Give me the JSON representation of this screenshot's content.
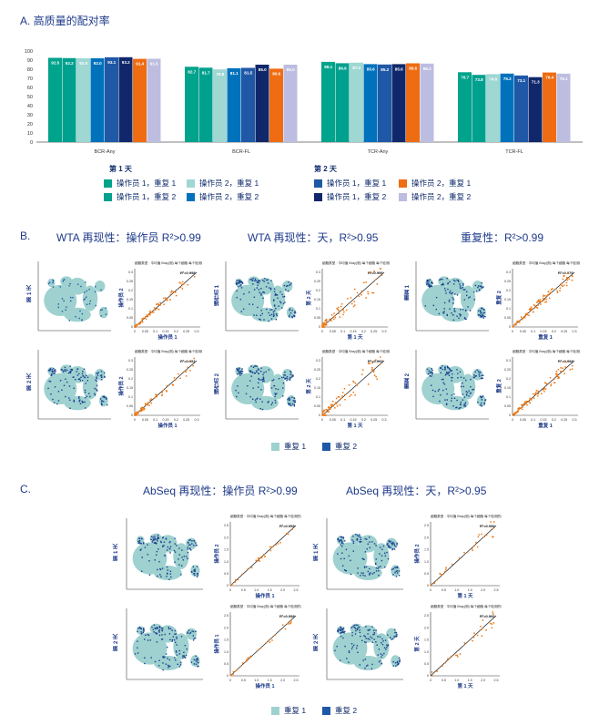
{
  "colors": {
    "op1_rep1": "#00a38b",
    "op2_rep1": "#9fd7d3",
    "op1_rep2": "#00a08e",
    "op2_rep2": "#0072bc",
    "day2_op1_rep1": "#1f58a6",
    "day2_op2_rep1": "#ef6c12",
    "day2_op1_rep2": "#10286b",
    "day2_op2_rep2": "#bcbde0",
    "tsne_fill": "#9ed1cf",
    "dot_orange": "#f07d1a"
  },
  "panel_a": {
    "title": "A. 高质量的配对率",
    "legend": {
      "day1_title": "第 1 天",
      "day2_title": "第 2 天",
      "day1_items": [
        "操作员 1，重复 1",
        "操作员 2，重复 1",
        "操作员 1，重复 2",
        "操作员 2，重复 2"
      ],
      "day2_items": [
        "操作员 1，重复 1",
        "操作员 2，重复 1",
        "操作员 1，重复 2",
        "操作员 2，重复 2"
      ]
    }
  },
  "chart_data": [
    {
      "type": "bar",
      "title": "A. 高质量的配对率",
      "categories": [
        "BCR-Any",
        "BCR-FL",
        "TCR-Any",
        "TCR-FL"
      ],
      "ylim": [
        0,
        100
      ],
      "yticks": [
        0,
        10,
        20,
        30,
        40,
        50,
        60,
        70,
        80,
        90,
        100
      ],
      "series": [
        {
          "name": "第 1 天 操作员 1，重复 1",
          "values": [
            92.5,
            82.7,
            88.1,
            76.7
          ]
        },
        {
          "name": "第 1 天 操作员 1，重复 2",
          "values": [
            92.2,
            81.7,
            86.6,
            73.8
          ]
        },
        {
          "name": "第 1 天 操作员 2，重复 1",
          "values": [
            92.0,
            79.8,
            87.2,
            74.6
          ]
        },
        {
          "name": "第 1 天 操作员 2，重复 2",
          "values": [
            92.0,
            81.1,
            85.6,
            75.2
          ]
        },
        {
          "name": "第 2 天 操作员 1，重复 1",
          "values": [
            93.1,
            81.5,
            85.2,
            73.1
          ]
        },
        {
          "name": "第 2 天 操作员 1，重复 2",
          "values": [
            93.2,
            85.0,
            85.6,
            71.3
          ]
        },
        {
          "name": "第 2 天 操作员 2，重复 1",
          "values": [
            91.4,
            80.6,
            86.5,
            76.4
          ]
        },
        {
          "name": "第 2 天 操作员 2，重复 2",
          "values": [
            91.5,
            85.0,
            86.2,
            75.1
          ]
        }
      ],
      "value_labels": [
        [
          "92.5",
          "92.2",
          "92.0",
          "92.0",
          "93.1",
          "93.2",
          "91.4",
          "91.5"
        ],
        [
          "82.7",
          "81.7",
          "79.8",
          "81.1",
          "81.5",
          "85.0",
          "80.6",
          "85.0"
        ],
        [
          "88.1",
          "86.6",
          "87.2",
          "85.6",
          "85.2",
          "85.6",
          "86.5",
          "86.2"
        ],
        [
          "76.7",
          "73.8",
          "74.6",
          "75.2",
          "73.1",
          "71.3",
          "76.4",
          "75.1"
        ]
      ]
    }
  ],
  "panel_b": {
    "label": "B.",
    "titles": [
      "WTA 再现性：操作员 R²>0.99",
      "WTA 再现性：天，R²>0.95",
      "重复性：R²>0.99"
    ],
    "scatter_header": "细胞类型 · 平均值    Bray(测) 每个细胞    每个检测的基因 的",
    "r2_labels": [
      "R²=0.998",
      "R²=0.991",
      "R²=0.996",
      "R²=0.993",
      "R²=0.976",
      "R²=0.998"
    ],
    "ylabels": [
      "第 1 天",
      "操作员 2",
      "第 2 天",
      "操作员 2"
    ],
    "xlabels": [
      "操作员 1",
      "第 1 天",
      "重复 1"
    ],
    "row_labels_top": [
      "第 1 天",
      "操作员 1"
    ],
    "legend": [
      "重复 1",
      "重复 2"
    ],
    "ticks": [
      "0",
      "0.05",
      "0.1",
      "0.15",
      "0.2",
      "0.25",
      "0.3"
    ]
  },
  "panel_c": {
    "label": "C.",
    "titles": [
      "AbSeq 再现性：操作员 R²>0.99",
      "AbSeq 再现性：天，R²>0.95"
    ],
    "r2_labels": [
      "R²=0.995",
      "R²=0.998",
      "R²=0.996",
      "R²=0.966"
    ],
    "ylabels": [
      "操作员 2",
      "操作员 1",
      "操作员 2",
      "第 2 天"
    ],
    "row_labels": [
      "第 1 天",
      "第 2 天",
      "第 1 天",
      "第 2 天"
    ],
    "xlabels": [
      "操作员 1",
      "第 1 天"
    ],
    "legend": [
      "重复 1",
      "重复 2"
    ],
    "ticks": [
      "0",
      "0.5",
      "1.0",
      "1.5",
      "2.0",
      "2.5"
    ]
  }
}
